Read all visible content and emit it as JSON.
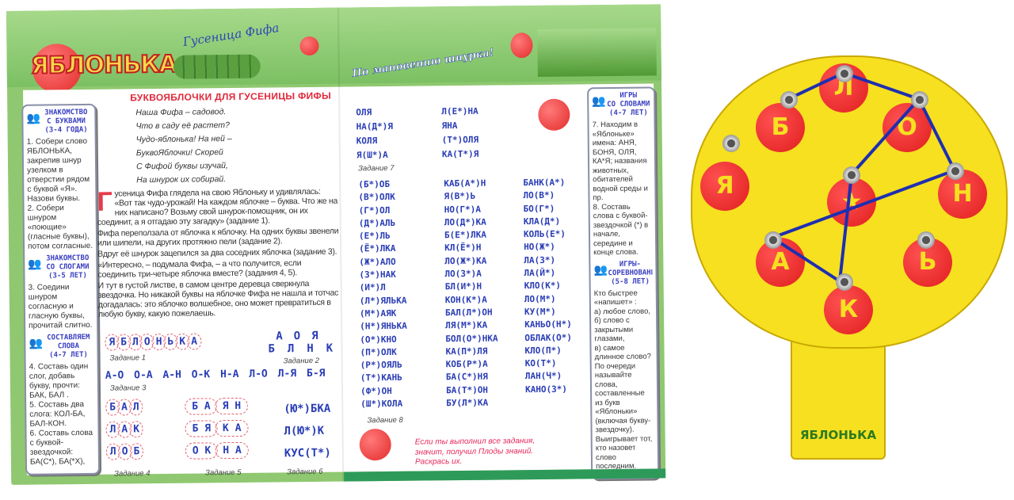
{
  "booklet": {
    "logo": "ЯБЛОНЬКА",
    "subtitle": "Гусеница Фифа",
    "slogan": "По мановению шнурка!",
    "title": "БУКВОЯБЛОЧКИ ДЛЯ ГУСЕНИЦЫ ФИФЫ",
    "poem": [
      "Наша Фифа – садовод.",
      "Что в саду её растет?",
      "Чудо-яблонька! На ней –",
      "БуквоЯблочки! Скорей",
      "С Фифой буквы изучай,",
      "На шнурок их собирай."
    ],
    "dropcap": "Г",
    "paragraphs": [
      "усеница Фифа глядела на свою Яблоньку и удивлялась: «Вот так чудо-урожай! На каждом яблочке – буква. Что же на них написано? Возьму свой шнурок-помощник, он их соединит, а я отгадаю эту загадку» (задание 1).",
      "Фифа переползала от яблочка к яблочку. На одних буквы звенели или шипели, на других протяжно пели (задание 2).",
      "Вдруг её шнурок зацепился за два соседних яблочка (задание 3).",
      "«Интересно, – подумала Фифа, – а что получится, если соединить три-четыре яблочка вместе? (задания 4, 5).",
      "И тут в густой листве, в самом центре деревца сверкнула звездочка. Но никакой буквы на яблочке Фифа не нашла и тотчас догадалась: это яблочко волшебное, оно может превратиться в любую букву, какую пожелаешь."
    ],
    "left_sidebar": {
      "sections": [
        {
          "head": [
            "ЗНАКОМСТВО",
            "С БУКВАМИ",
            "(3-4 ГОДА)"
          ],
          "text": "1. Собери слово ЯБЛОНЬКА, закрепив шнур узелком в отверстии рядом с буквой «Я». Назови буквы.\n2. Собери шнуром «поющие» (гласные буквы), потом согласные."
        },
        {
          "head": [
            "ЗНАКОМСТВО",
            "СО СЛОГАМИ",
            "(3-5 ЛЕТ)"
          ],
          "text": "3. Соедини шнуром согласную и гласную буквы, прочитай слитно."
        },
        {
          "head": [
            "СОСТАВЛЯЕМ",
            "СЛОВА",
            "(4-7 ЛЕТ)"
          ],
          "text": "4. Составь один слог, добавь букву, прочти: БАК, БАЛ .\n5. Составь два слога: КОЛ-БА, БАЛ-КОН.\n6. Составь слова с буквой-звездочкой: БА(С*), БА(*Х),"
        }
      ]
    },
    "right_sidebar": {
      "sections": [
        {
          "head": [
            "ИГРЫ",
            "СО СЛОВАМИ",
            "(4-7 ЛЕТ)"
          ],
          "text": "7. Находим в «Яблоньке» имена: АНЯ, БОНЯ, ОЛЯ, КА*Я; названия животных, обитателей водной среды и пр.\n8. Составь слова с буквой-звездочкой (*) в начале, середине и конце слова."
        },
        {
          "head": [
            "ИГРЫ-",
            "СОРЕВНОВАНИЯ",
            "(5-8 ЛЕТ)"
          ],
          "text": "Кто быстрее «напишет» :\nа) любое слово,\nб) слово с закрытыми глазами,\nв) самое длинное слово?\nПо очереди называйте слова, составленные из букв «Яблоньки» (включая букву-звездочку). Выигрывает тот, кто назовет слово последним."
        }
      ]
    },
    "task1": {
      "letters": [
        "Я",
        "Б",
        "Л",
        "О",
        "Н",
        "Ь",
        "К",
        "А"
      ],
      "label": "Задание 1"
    },
    "task2": {
      "top": [
        "А",
        "О",
        "Я"
      ],
      "bottom": [
        "Б",
        "Л",
        "Н",
        "К"
      ],
      "label": "Задание 2"
    },
    "task3": {
      "pairs": [
        "А-О",
        "О-А",
        "А-Н",
        "О-К",
        "Н-А",
        "Л-О",
        "Л-Я",
        "Б-Я"
      ],
      "label": "Задание 3"
    },
    "task4": {
      "rows": [
        [
          "Б",
          "А",
          "Л"
        ],
        [
          "Л",
          "А",
          "К"
        ],
        [
          "Л",
          "О",
          "Б"
        ]
      ],
      "label": "Задание 4"
    },
    "task5": {
      "rows": [
        [
          "Б А",
          "Я Н"
        ],
        [
          "Б Я",
          "К А"
        ],
        [
          "О К",
          "Н А"
        ]
      ],
      "label": "Задание 5"
    },
    "task6": {
      "words": [
        "(Ю*)БКА",
        "Л(Ю*)К",
        "КУС(Т*)"
      ],
      "label": "Задание 6"
    },
    "task7": {
      "col1": [
        "ОЛЯ",
        "НА(Д*)Я",
        "КОЛЯ",
        "Я(Ш*)А"
      ],
      "col2": [
        "Л(Е*)НА",
        "ЯНА",
        "(Т*)ОЛЯ",
        "КА(Т*)Я"
      ],
      "label": "Задание 7"
    },
    "task8": {
      "col1": [
        "(Б*)ОБ",
        "(В*)ОЛК",
        "(Г*)ОЛ",
        "(Д*)АЛЬ",
        "(Е*)ЛЬ",
        "(Ё*)ЛКА",
        "(Ж*)АЛО",
        "(З*)НАК",
        "(И*)Л",
        "(Л*)ЯЛЬКА",
        "(М*)АЯК",
        "(Н*)ЯНЬКА",
        "(О*)КНО",
        "(П*)ОЛК",
        "(Р*)ОЯЛЬ",
        "(Т*)КАНЬ",
        "(Ф*)ОН",
        "(Ш*)КОЛА"
      ],
      "col2": [
        "КАБ(А*)Н",
        "Я(В*)Ь",
        "НО(Г*)А",
        "ЛО(Д*)КА",
        "Б(Е*)ЛКА",
        "КЛ(Ё*)Н",
        "ЛО(Ж*)КА",
        "ЛО(З*)А",
        "БЛ(И*)Н",
        "КОН(К*)А",
        "БАЛ(Л*)ОН",
        "ЛЯ(М*)КА",
        "БОЛ(О*)НКА",
        "КА(П*)ЛЯ",
        "КОБ(Р*)А",
        "БА(С*)НЯ",
        "БА(Т*)ОН",
        "БУ(Л*)КА"
      ],
      "col3": [
        "БАНК(А*)",
        "ЛО(В*)",
        "БО(Г*)",
        "КЛА(Д*)",
        "КОЛЬ(Е*)",
        "НО(Ж*)",
        "ЛА(З*)",
        "ЛА(Й*)",
        "КЛО(К*)",
        "ЛО(М*)",
        "КУ(М*)",
        "КАНЬО(Н*)",
        "ОБЛАК(О*)",
        "КЛО(П*)",
        "КО(Т*)",
        "ЛАН(Ч*)",
        "КАНО(З*)"
      ],
      "label": "Задание 8"
    },
    "final_note": [
      "Если ты выполнил все задания,",
      "значит, получил Плоды знаний.",
      "Раскрась их."
    ]
  },
  "toy": {
    "apples": [
      "Я",
      "Б",
      "Л",
      "О",
      "Н",
      "Ь",
      "К",
      "А"
    ],
    "center": "★",
    "label": "ЯБЛОНЬКА",
    "colors": {
      "crown": "#f6e020",
      "apple": "#e01e1e",
      "lace": "#1f2fb0"
    }
  }
}
